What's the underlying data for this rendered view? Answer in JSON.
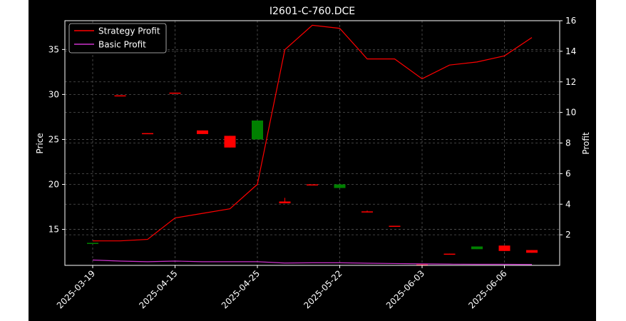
{
  "chart_data": {
    "type": "candlestick+line",
    "title": "I2601-C-760.DCE",
    "xlabel": "",
    "ylabel_left": "Price",
    "ylabel_right": "Profit",
    "ylim_left": [
      11.0,
      38.2
    ],
    "ylim_right": [
      0.0,
      16.0
    ],
    "left_ticks": [
      15,
      20,
      25,
      30,
      35
    ],
    "right_ticks": [
      2,
      4,
      6,
      8,
      10,
      12,
      14,
      16
    ],
    "x_tick_labels": [
      "2025-03-19",
      "2025-04-15",
      "2025-04-25",
      "2025-05-22",
      "2025-06-03",
      "2025-06-06"
    ],
    "x_tick_index": [
      0,
      3,
      6,
      9,
      12,
      15
    ],
    "grid": true,
    "legend_position": "top-left",
    "colors": {
      "background": "#000000",
      "up": "#008000",
      "down": "#ff0000",
      "strategy": "#ff0000",
      "basic": "#cc33cc",
      "grid": "#555555",
      "axes": "#ffffff"
    },
    "candles": [
      {
        "open": 13.5,
        "close": 13.5,
        "high": 13.5,
        "low": 13.5
      },
      {
        "open": 29.9,
        "close": 29.8,
        "high": 29.9,
        "low": 29.8
      },
      {
        "open": 25.7,
        "close": 25.6,
        "high": 25.7,
        "low": 25.6
      },
      {
        "open": 30.2,
        "close": 30.1,
        "high": 30.2,
        "low": 30.1
      },
      {
        "open": 26.0,
        "close": 25.6,
        "high": 26.0,
        "low": 25.6
      },
      {
        "open": 25.4,
        "close": 24.1,
        "high": 25.4,
        "low": 24.1
      },
      {
        "open": 25.0,
        "close": 27.1,
        "high": 27.1,
        "low": 25.0
      },
      {
        "open": 18.1,
        "close": 17.9,
        "high": 18.5,
        "low": 17.9
      },
      {
        "open": 20.0,
        "close": 19.9,
        "high": 20.0,
        "low": 19.9
      },
      {
        "open": 19.6,
        "close": 20.0,
        "high": 20.0,
        "low": 19.6
      },
      {
        "open": 17.0,
        "close": 16.9,
        "high": 17.1,
        "low": 16.9
      },
      {
        "open": 15.4,
        "close": 15.3,
        "high": 15.4,
        "low": 15.3
      },
      {
        "open": 11.1,
        "close": 11.0,
        "high": 11.1,
        "low": 11.0
      },
      {
        "open": 12.3,
        "close": 12.2,
        "high": 12.3,
        "low": 12.2
      },
      {
        "open": 12.8,
        "close": 13.1,
        "high": 13.1,
        "low": 12.8
      },
      {
        "open": 13.2,
        "close": 12.6,
        "high": 13.2,
        "low": 12.6
      },
      {
        "open": 12.7,
        "close": 12.4,
        "high": 12.7,
        "low": 12.4
      }
    ],
    "series": [
      {
        "name": "Strategy Profit",
        "axis": "right",
        "values": [
          1.6,
          1.6,
          1.7,
          3.1,
          3.4,
          3.7,
          5.3,
          14.1,
          15.7,
          15.5,
          13.5,
          13.5,
          12.2,
          13.1,
          13.3,
          13.7,
          14.9
        ]
      },
      {
        "name": "Basic Profit",
        "axis": "right",
        "values": [
          0.35,
          0.28,
          0.24,
          0.28,
          0.24,
          0.24,
          0.24,
          0.15,
          0.17,
          0.17,
          0.14,
          0.12,
          0.1,
          0.08,
          0.07,
          0.07,
          0.06
        ]
      }
    ]
  }
}
